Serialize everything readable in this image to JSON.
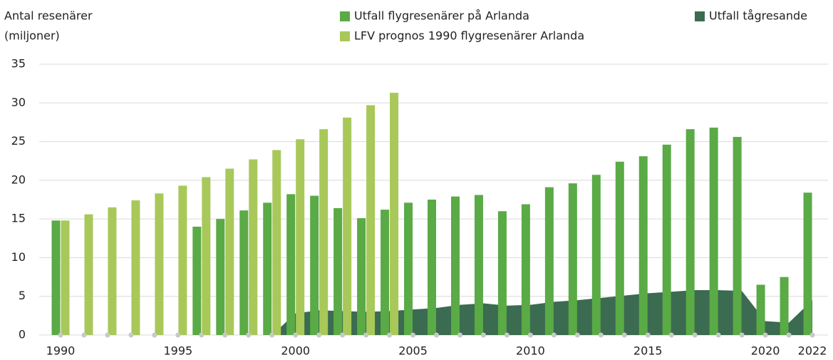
{
  "chart_data": {
    "type": "bar",
    "y_label_lines": [
      "Antal resenärer",
      "(miljoner)"
    ],
    "categories": [
      "1990",
      null,
      null,
      null,
      null,
      "1995",
      null,
      null,
      null,
      null,
      "2000",
      null,
      null,
      null,
      null,
      "2005",
      null,
      null,
      null,
      null,
      "2010",
      null,
      null,
      null,
      null,
      "2015",
      null,
      null,
      null,
      null,
      "2020",
      null,
      "2022"
    ],
    "series": [
      {
        "name": "Utfall flygresenärer på Arlanda",
        "color": "#5aaa46",
        "kind": "bar",
        "values": [
          14.8,
          null,
          null,
          null,
          null,
          null,
          14.0,
          15.0,
          16.1,
          17.1,
          18.2,
          18.0,
          16.4,
          15.1,
          16.2,
          17.1,
          17.5,
          17.9,
          18.1,
          16.0,
          16.9,
          19.1,
          19.6,
          20.7,
          22.4,
          23.1,
          24.6,
          26.6,
          26.8,
          25.6,
          6.5,
          7.5,
          18.4
        ]
      },
      {
        "name": "LFV prognos 1990 flygresenärer Arlanda",
        "color": "#a8c85a",
        "kind": "bar",
        "values": [
          14.8,
          15.6,
          16.5,
          17.4,
          18.3,
          19.3,
          20.4,
          21.5,
          22.7,
          23.9,
          25.3,
          26.6,
          28.1,
          29.7,
          31.3,
          null,
          null,
          null,
          null,
          null,
          null,
          null,
          null,
          null,
          null,
          null,
          null,
          null,
          null,
          null,
          null,
          null,
          null
        ]
      },
      {
        "name": "Utfall tågresande",
        "color": "#3b6b50",
        "kind": "area",
        "values": [
          null,
          null,
          null,
          null,
          null,
          null,
          null,
          null,
          null,
          0,
          2.8,
          3.2,
          3.1,
          3.0,
          3.1,
          3.3,
          3.5,
          3.9,
          4.1,
          3.8,
          3.9,
          4.3,
          4.5,
          4.8,
          5.1,
          5.4,
          5.6,
          5.8,
          5.8,
          5.7,
          1.8,
          1.6,
          4.5
        ]
      }
    ],
    "ylim": [
      0,
      35
    ],
    "yticks": [
      0,
      5,
      10,
      15,
      20,
      25,
      30,
      35
    ],
    "grid": true
  }
}
